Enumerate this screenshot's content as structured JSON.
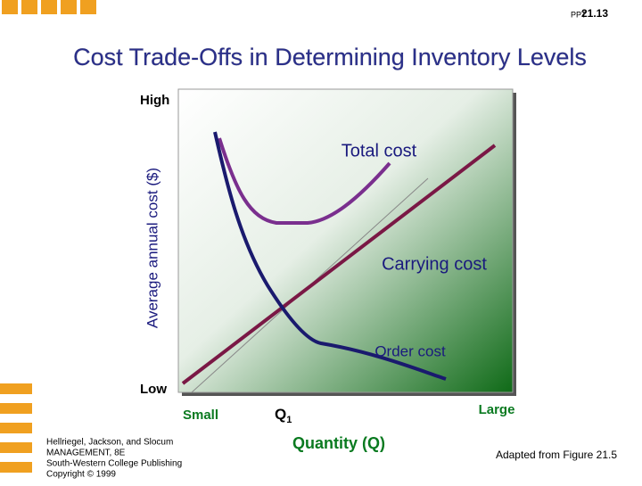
{
  "header": {
    "prefix": "PPT",
    "number": "21.13"
  },
  "title": "Cost Trade-Offs in Determining Inventory Levels",
  "chart": {
    "y_axis_label": "Average annual cost ($)",
    "y_high": "High",
    "y_low": "Low",
    "x_axis_label": "Quantity (Q)",
    "x_small": "Small",
    "x_large": "Large",
    "q1": "Q",
    "q1_sub": "1",
    "curves": [
      "Total cost",
      "Carrying cost",
      "Order cost"
    ]
  },
  "footer": {
    "citation": [
      "Hellriegel, Jackson, and Slocum",
      "MANAGEMENT, 8E",
      "South-Western College Publishing",
      "Copyright © 1999"
    ],
    "source": "Adapted from Figure 21.5"
  }
}
